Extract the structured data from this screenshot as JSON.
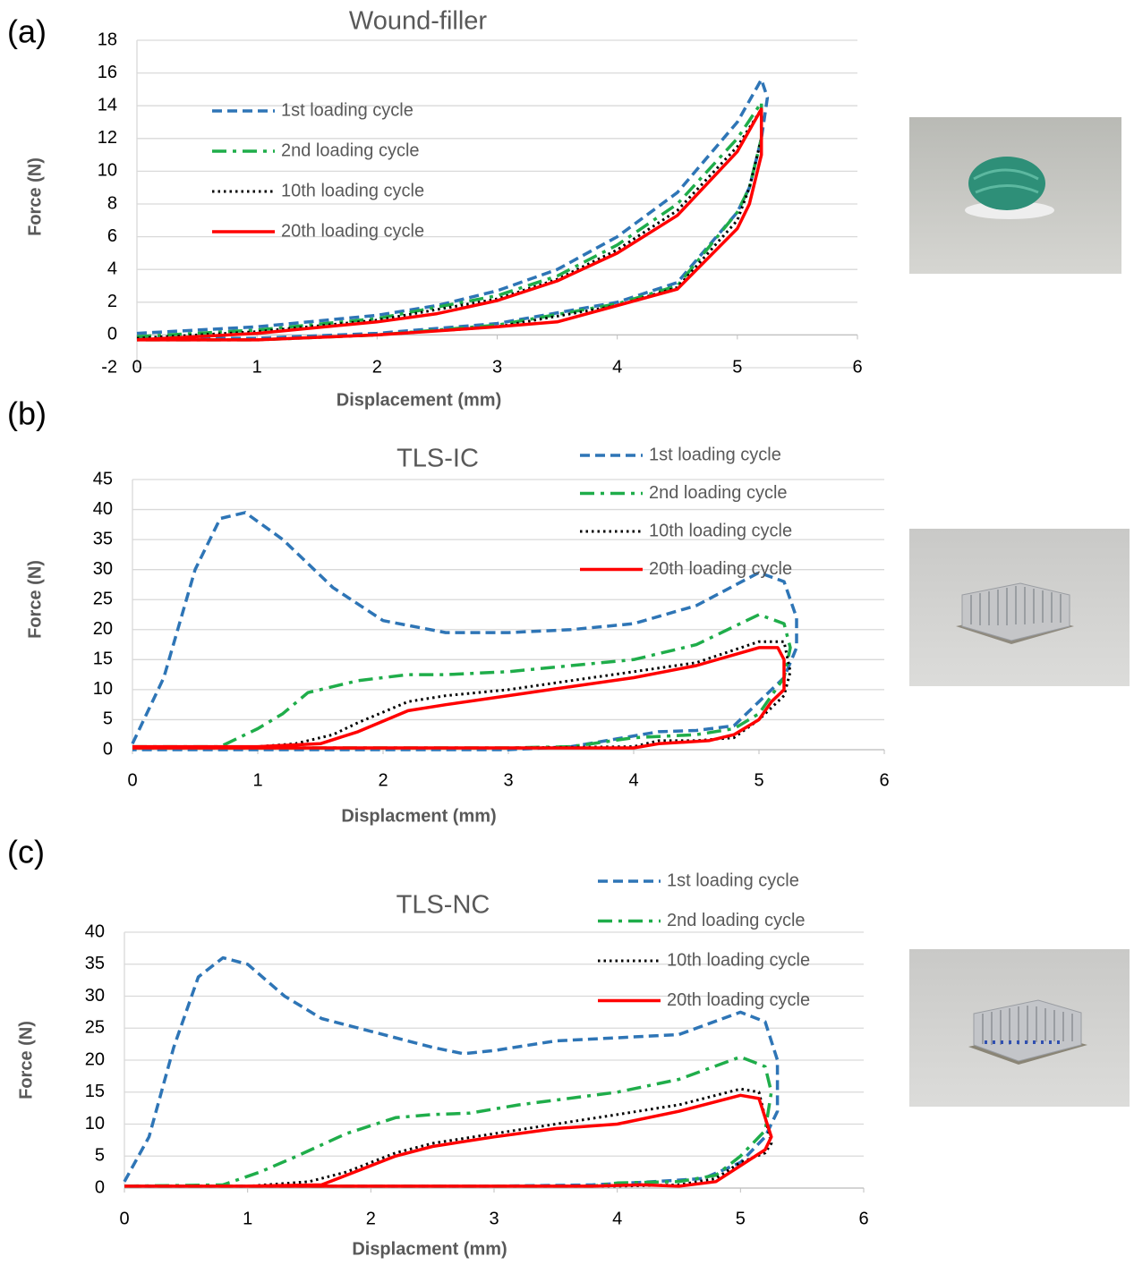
{
  "chart_data": [
    {
      "type": "line",
      "label": "(a)",
      "title": "Wound-filler",
      "x_label": "Displacement (mm)",
      "y_label": "Force (N)",
      "xlim": [
        0,
        6
      ],
      "xticks": [
        0,
        1,
        2,
        3,
        4,
        5,
        6
      ],
      "ylim": [
        -2,
        18
      ],
      "yticks": [
        -2,
        0,
        2,
        4,
        6,
        8,
        10,
        12,
        14,
        16,
        18
      ],
      "grid": true,
      "legend": "upper left",
      "series": [
        {
          "name": "1st loading cycle",
          "color": "#2e75b6",
          "line_style": "dashed",
          "x": [
            0,
            1,
            2,
            2.5,
            3,
            3.5,
            4,
            4.5,
            5,
            5.2,
            5.25,
            5.2,
            5.1,
            5,
            4.5,
            4,
            3,
            2,
            1,
            0
          ],
          "values": [
            0.1,
            0.5,
            1.2,
            1.8,
            2.7,
            4,
            6,
            8.7,
            13,
            15.6,
            14.5,
            12,
            9,
            7.5,
            3.2,
            2,
            0.7,
            0.1,
            -0.2,
            -0.2
          ]
        },
        {
          "name": "2nd loading cycle",
          "color": "#1fad4a",
          "line_style": "dash-dot",
          "x": [
            0,
            1,
            2,
            3,
            3.5,
            4,
            4.5,
            5,
            5.2,
            5.2,
            5.1,
            5,
            4.5,
            4,
            3,
            2,
            1,
            0
          ],
          "values": [
            -0.1,
            0.3,
            1,
            2.4,
            3.6,
            5.5,
            8,
            12,
            14.2,
            12,
            9,
            7.5,
            3,
            1.9,
            0.6,
            0,
            -0.3,
            -0.3
          ]
        },
        {
          "name": "10th loading cycle",
          "color": "#000000",
          "line_style": "dotted",
          "x": [
            0,
            1,
            2,
            3,
            3.5,
            4,
            4.5,
            5,
            5.2,
            5.2,
            5.1,
            5,
            4.5,
            4,
            3,
            2,
            1,
            0
          ],
          "values": [
            -0.2,
            0.2,
            0.9,
            2.2,
            3.4,
            5.2,
            7.6,
            11.5,
            13.8,
            12,
            9,
            7,
            2.9,
            1.8,
            0.5,
            0,
            -0.3,
            -0.3
          ]
        },
        {
          "name": "20th loading cycle",
          "color": "#ff0000",
          "line_style": "solid",
          "x": [
            0,
            1,
            2,
            2.5,
            3,
            3.5,
            4,
            4.5,
            5,
            5.2,
            5.2,
            5.1,
            5,
            4.5,
            4,
            3.5,
            3,
            2,
            1,
            0
          ],
          "values": [
            -0.3,
            0.1,
            0.8,
            1.3,
            2.1,
            3.3,
            5,
            7.3,
            11.2,
            13.8,
            11,
            8,
            6.5,
            2.8,
            1.8,
            0.8,
            0.5,
            0,
            -0.3,
            -0.3
          ]
        }
      ]
    },
    {
      "type": "line",
      "label": "(b)",
      "title": "TLS-IC",
      "x_label": "Displacment (mm)",
      "y_label": "Force (N)",
      "xlim": [
        0,
        6
      ],
      "xticks": [
        0,
        1,
        2,
        3,
        4,
        5,
        6
      ],
      "ylim": [
        0,
        45
      ],
      "yticks": [
        0,
        5,
        10,
        15,
        20,
        25,
        30,
        35,
        40,
        45
      ],
      "grid": true,
      "legend": "upper right",
      "series": [
        {
          "name": "1st loading cycle",
          "color": "#2e75b6",
          "line_style": "dashed",
          "x": [
            0,
            0.25,
            0.5,
            0.7,
            0.9,
            1.2,
            1.6,
            2,
            2.5,
            3,
            3.5,
            4,
            4.5,
            5,
            5.2,
            5.3,
            5.3,
            5.2,
            5,
            4.8,
            4.5,
            4.2,
            3.5,
            3,
            1,
            0
          ],
          "values": [
            1,
            12,
            30,
            38.5,
            39.5,
            35,
            27,
            21.5,
            19.5,
            19.5,
            20,
            21,
            24,
            29.5,
            28,
            22,
            17,
            12,
            8,
            4,
            3.2,
            3,
            0.5,
            0,
            0,
            0
          ]
        },
        {
          "name": "2nd loading cycle",
          "color": "#1fad4a",
          "line_style": "dash-dot",
          "x": [
            0,
            0.7,
            1,
            1.2,
            1.4,
            1.8,
            2.2,
            2.5,
            3,
            3.5,
            4,
            4.5,
            5,
            5.2,
            5.25,
            5.2,
            5,
            4.8,
            4.5,
            4,
            3.5,
            3,
            1,
            0
          ],
          "values": [
            0.5,
            0.5,
            3.5,
            6,
            9.5,
            11.5,
            12.5,
            12.5,
            13,
            14,
            15,
            17.5,
            22.5,
            21,
            17,
            12,
            6,
            3.5,
            2.5,
            2,
            0.5,
            0.3,
            0.3,
            0.3
          ]
        },
        {
          "name": "10th loading cycle",
          "color": "#000000",
          "line_style": "dotted",
          "x": [
            0,
            1,
            1.3,
            1.6,
            1.8,
            2.2,
            2.5,
            3,
            3.5,
            4,
            4.5,
            5,
            5.2,
            5.25,
            5.2,
            5,
            4.8,
            4.5,
            4.2,
            4,
            3,
            1,
            0
          ],
          "values": [
            0.5,
            0.5,
            1,
            2.5,
            4.5,
            8,
            9,
            10,
            11.5,
            13,
            14.5,
            18,
            18,
            13,
            9,
            5,
            2,
            1.5,
            1.5,
            0.5,
            0.3,
            0.3,
            0.3
          ]
        },
        {
          "name": "20th loading cycle",
          "color": "#ff0000",
          "line_style": "solid",
          "x": [
            0,
            1,
            1.5,
            1.8,
            2.2,
            2.5,
            3,
            3.5,
            4,
            4.5,
            5,
            5.15,
            5.2,
            5.2,
            5.1,
            5,
            4.8,
            4.6,
            4.2,
            4,
            3,
            1,
            0
          ],
          "values": [
            0.5,
            0.5,
            1,
            3,
            6.5,
            7.5,
            9,
            10.5,
            12,
            14,
            17,
            17,
            15,
            10,
            8,
            5,
            2.5,
            1.5,
            1,
            0.3,
            0.3,
            0.3,
            0.3
          ]
        }
      ]
    },
    {
      "type": "line",
      "label": "(c)",
      "title": "TLS-NC",
      "x_label": "Displacment (mm)",
      "y_label": "Force (N)",
      "xlim": [
        0,
        6
      ],
      "xticks": [
        0,
        1,
        2,
        3,
        4,
        5,
        6
      ],
      "ylim": [
        0,
        40
      ],
      "yticks": [
        0,
        5,
        10,
        15,
        20,
        25,
        30,
        35,
        40
      ],
      "grid": true,
      "legend": "upper right",
      "series": [
        {
          "name": "1st loading cycle",
          "color": "#2e75b6",
          "line_style": "dashed",
          "x": [
            0,
            0.2,
            0.4,
            0.6,
            0.8,
            1,
            1.3,
            1.6,
            2,
            2.5,
            2.75,
            3,
            3.5,
            4,
            4.5,
            5,
            5.2,
            5.3,
            5.3,
            5.2,
            5,
            4.7,
            4.3,
            3.8,
            3,
            1,
            0
          ],
          "values": [
            1,
            8,
            22,
            33,
            36,
            35,
            30,
            26.5,
            24.5,
            22,
            21,
            21.5,
            23,
            23.5,
            24,
            27.5,
            26,
            20,
            12,
            8,
            4,
            1.5,
            1,
            0.5,
            0.3,
            0.3,
            0.3
          ]
        },
        {
          "name": "2nd loading cycle",
          "color": "#1fad4a",
          "line_style": "dash-dot",
          "x": [
            0,
            0.8,
            1.1,
            1.4,
            1.8,
            2.2,
            2.5,
            2.8,
            3.2,
            4,
            4.5,
            5,
            5.2,
            5.25,
            5.2,
            5,
            4.8,
            4.5,
            4,
            3.8,
            1,
            0
          ],
          "values": [
            0.3,
            0.5,
            2.5,
            5,
            8.5,
            11,
            11.5,
            11.7,
            13,
            15,
            17,
            20.5,
            19,
            15,
            9,
            5,
            2,
            1,
            0.8,
            0.3,
            0.3,
            0.3
          ]
        },
        {
          "name": "10th loading cycle",
          "color": "#000000",
          "line_style": "dotted",
          "x": [
            0,
            1,
            1.5,
            1.8,
            2.2,
            2.5,
            3,
            3.5,
            4,
            4.5,
            5,
            5.15,
            5.2,
            5.25,
            5.2,
            5,
            4.8,
            4.5,
            4,
            1,
            0
          ],
          "values": [
            0.3,
            0.3,
            1,
            2.5,
            5.5,
            7,
            8.5,
            10,
            11.5,
            13,
            15.5,
            15,
            11,
            7,
            5.5,
            4,
            1.5,
            0.5,
            0.3,
            0.3,
            0.3
          ]
        },
        {
          "name": "20th loading cycle",
          "color": "#ff0000",
          "line_style": "solid",
          "x": [
            0,
            1,
            1.6,
            1.8,
            2.2,
            2.5,
            3,
            3.5,
            4,
            4.5,
            5,
            5.15,
            5.25,
            5.2,
            5,
            4.8,
            4.5,
            4.2,
            3.8,
            1,
            0
          ],
          "values": [
            0.3,
            0.3,
            0.5,
            2,
            5,
            6.5,
            8,
            9.3,
            10,
            12,
            14.5,
            14,
            8,
            6,
            3.5,
            1,
            0.3,
            0.5,
            0.3,
            0.3,
            0.3
          ]
        }
      ]
    }
  ]
}
